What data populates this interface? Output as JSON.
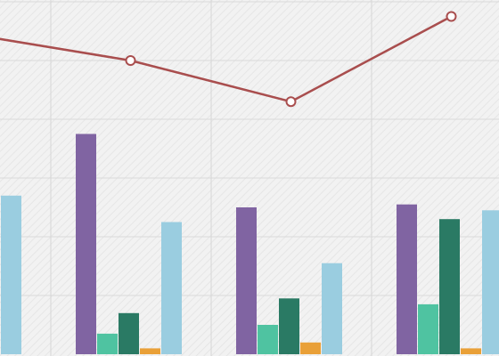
{
  "chart_data": {
    "type": "bar",
    "title": "",
    "xlabel": "",
    "ylabel": "",
    "grid": true,
    "ylim": [
      0,
      100
    ],
    "categories": [
      "",
      "",
      "",
      ""
    ],
    "series": [
      {
        "values": [
          null,
          75,
          50,
          51
        ]
      },
      {
        "values": [
          null,
          7,
          10,
          17
        ]
      },
      {
        "values": [
          null,
          14,
          19,
          46
        ]
      },
      {
        "values": [
          3,
          2,
          4,
          2
        ]
      },
      {
        "values": [
          54,
          45,
          31,
          49
        ]
      }
    ],
    "line_series": {
      "values": [
        109,
        100,
        86,
        115
      ]
    },
    "series_colors": [
      "#8064a2",
      "#4fc3a1",
      "#2a7a64",
      "#e9a038",
      "#9acde0"
    ],
    "line_color": "#a94e4e"
  }
}
